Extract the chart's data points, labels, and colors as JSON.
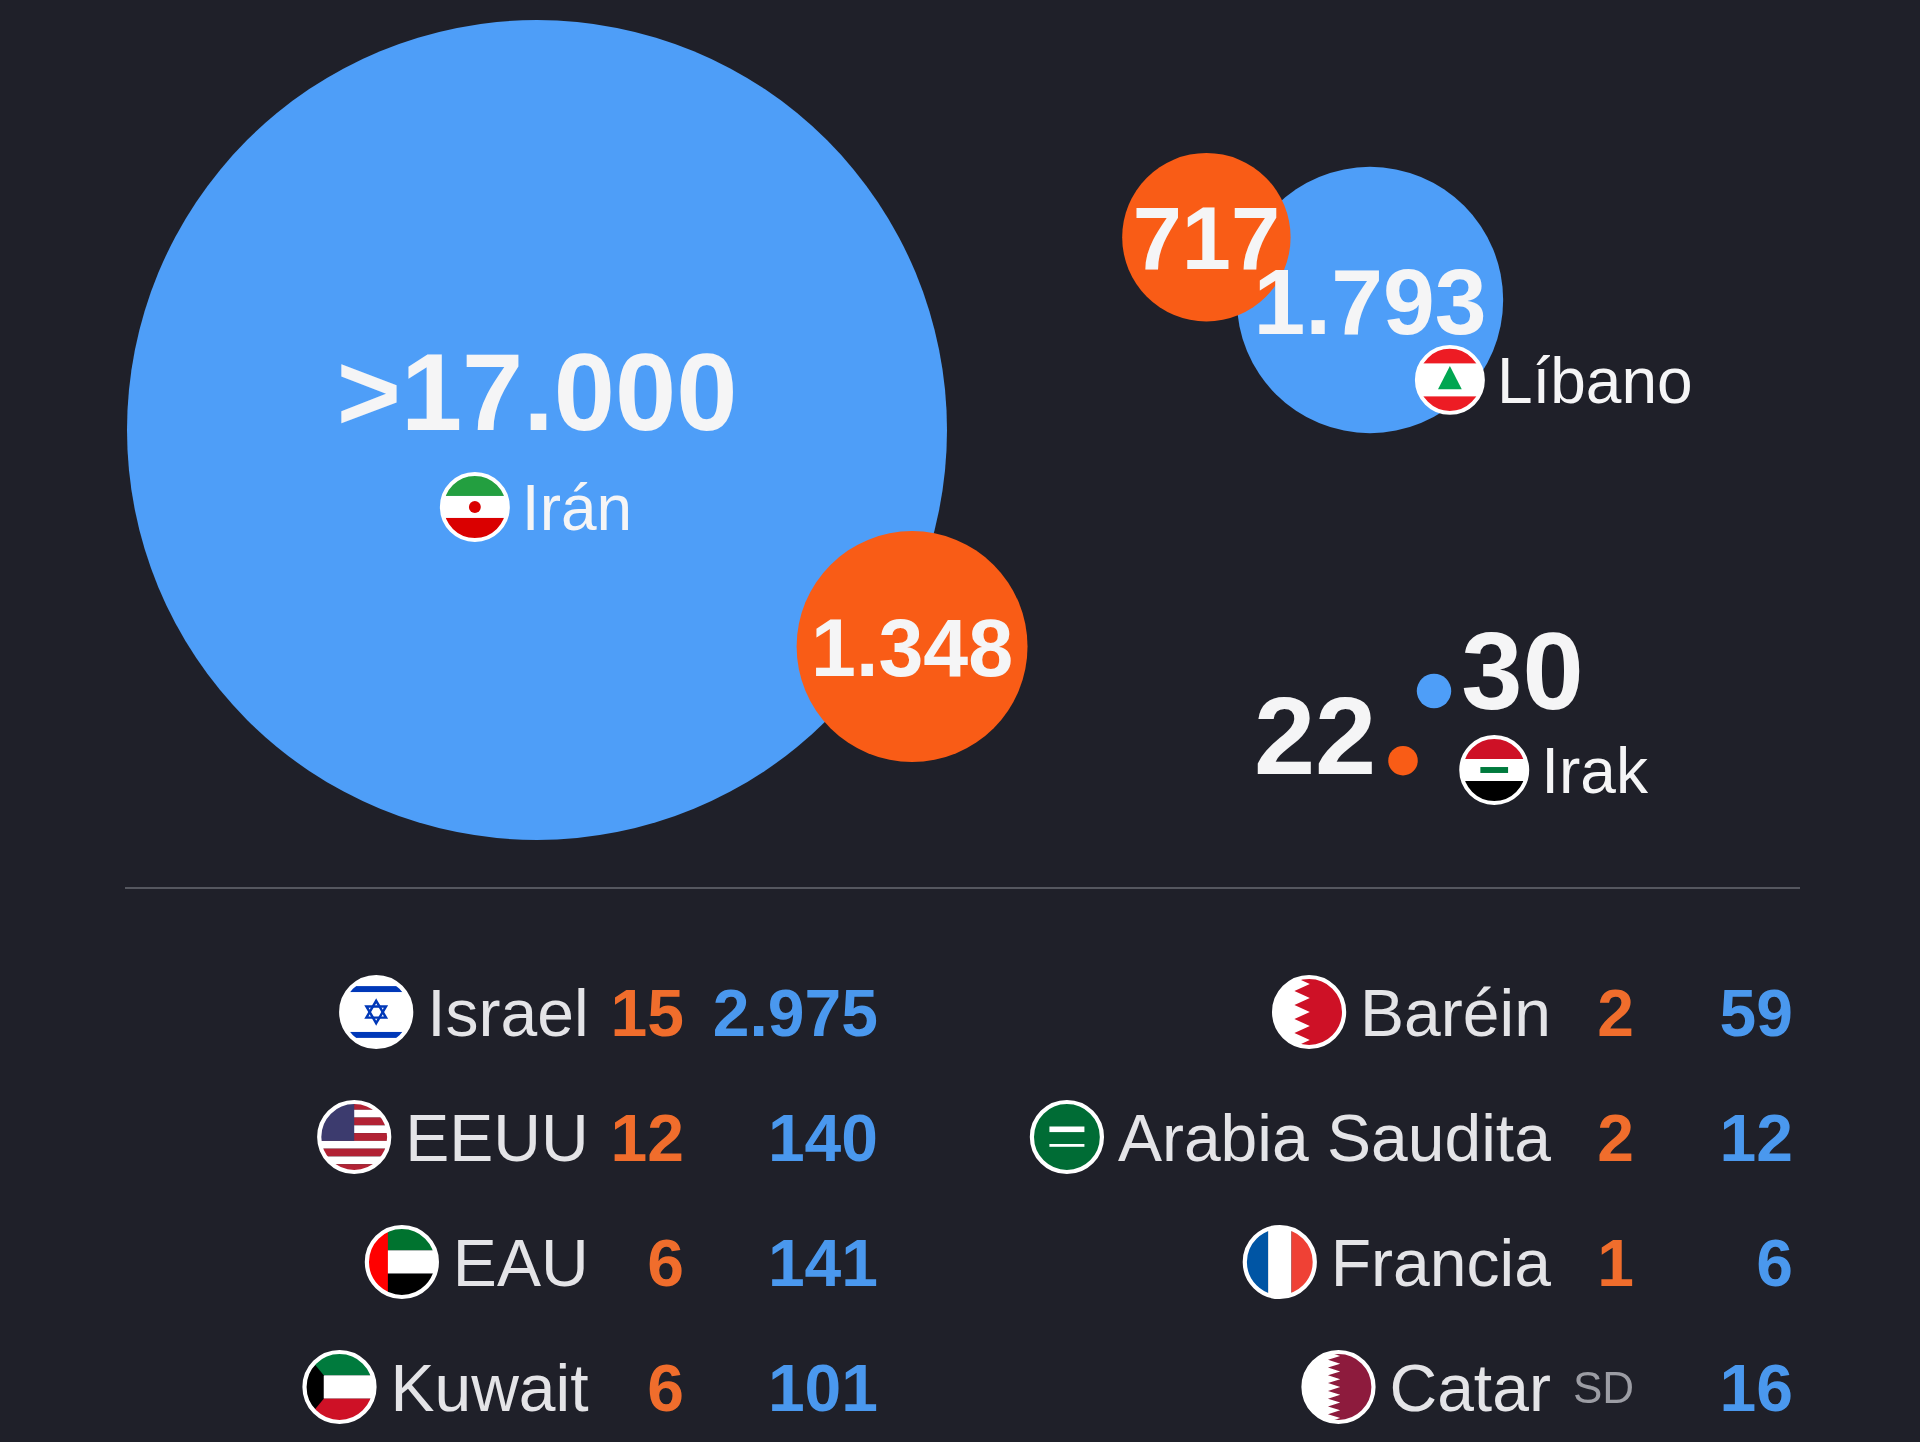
{
  "chart_data": [
    {
      "type": "other",
      "categories": [
        "Irán",
        "Líbano",
        "Irak"
      ],
      "series": [
        {
          "color": "#f95c16",
          "values": [
            1348,
            717,
            22
          ],
          "value_labels": [
            "1.348",
            "717",
            "22"
          ]
        },
        {
          "color": "#4e9ef8",
          "values": [
            17000,
            1793,
            30
          ],
          "value_labels": [
            ">17.000",
            "1.793",
            "30"
          ]
        }
      ]
    },
    {
      "type": "other",
      "categories": [
        "Israel",
        "EEUU",
        "EAU",
        "Kuwait",
        "Baréin",
        "Arabia Saudita",
        "Francia",
        "Catar"
      ],
      "series": [
        {
          "color": "#f06d2c",
          "values": [
            15,
            12,
            6,
            6,
            2,
            2,
            1,
            null
          ],
          "value_labels": [
            "15",
            "12",
            "6",
            "6",
            "2",
            "2",
            "1",
            "SD"
          ]
        },
        {
          "color": "#4a98ee",
          "values": [
            2975,
            140,
            141,
            101,
            59,
            12,
            6,
            16
          ],
          "value_labels": [
            "2.975",
            "140",
            "141",
            "101",
            "59",
            "12",
            "6",
            "16"
          ]
        }
      ]
    }
  ]
}
